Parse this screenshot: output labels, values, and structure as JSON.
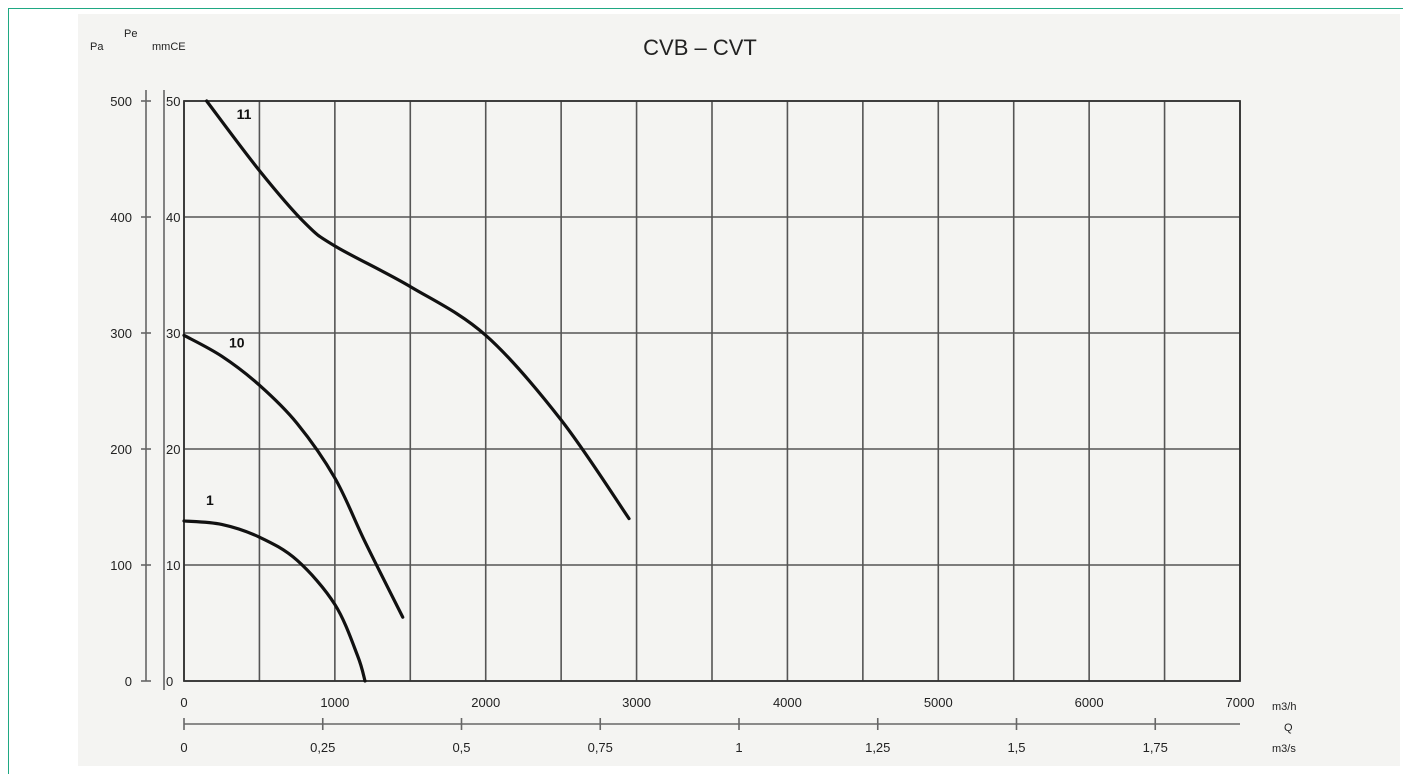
{
  "chart_data": {
    "type": "line",
    "title": "CVB – CVT",
    "y_units": {
      "left": "Pa",
      "right_top": "Pe",
      "right_sub": "mmCE"
    },
    "x_units": {
      "primary": "m3/h",
      "name": "Q",
      "secondary": "m3/s"
    },
    "xlim": [
      0,
      7000
    ],
    "ylim_pa": [
      0,
      500
    ],
    "x_ticks": [
      "0",
      "1000",
      "2000",
      "3000",
      "4000",
      "5000",
      "6000",
      "7000"
    ],
    "x_ticks_values": [
      0,
      1000,
      2000,
      3000,
      4000,
      5000,
      6000,
      7000
    ],
    "x2_ticks": [
      "0",
      "0,25",
      "0,5",
      "0,75",
      "1",
      "1,25",
      "1,5",
      "1,75"
    ],
    "x2_ticks_values": [
      0,
      0.25,
      0.5,
      0.75,
      1,
      1.25,
      1.5,
      1.75
    ],
    "y_ticks_pa": [
      "0",
      "100",
      "200",
      "300",
      "400",
      "500"
    ],
    "y_ticks_mmce": [
      "0",
      "10",
      "20",
      "30",
      "40",
      "50"
    ],
    "y_ticks_values": [
      0,
      100,
      200,
      300,
      400,
      500
    ],
    "grid": true,
    "series": [
      {
        "name": "1",
        "points": [
          [
            0,
            138
          ],
          [
            250,
            135
          ],
          [
            500,
            124
          ],
          [
            750,
            104
          ],
          [
            1000,
            66
          ],
          [
            1150,
            22
          ],
          [
            1200,
            0
          ]
        ]
      },
      {
        "name": "10",
        "points": [
          [
            0,
            298
          ],
          [
            250,
            280
          ],
          [
            500,
            255
          ],
          [
            750,
            222
          ],
          [
            1000,
            175
          ],
          [
            1200,
            120
          ],
          [
            1450,
            55
          ]
        ]
      },
      {
        "name": "11",
        "points": [
          [
            150,
            500
          ],
          [
            500,
            440
          ],
          [
            800,
            395
          ],
          [
            1000,
            375
          ],
          [
            1500,
            340
          ],
          [
            2000,
            298
          ],
          [
            2500,
            225
          ],
          [
            2950,
            140
          ]
        ]
      }
    ]
  }
}
